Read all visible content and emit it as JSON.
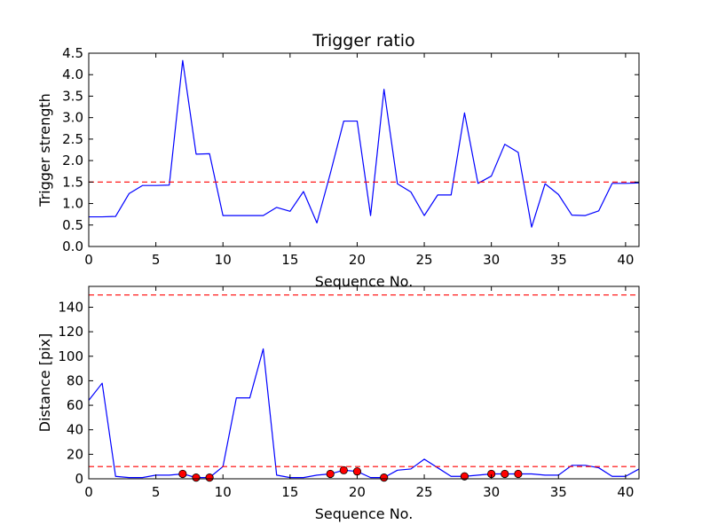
{
  "chart_data": [
    {
      "type": "line",
      "title": "Trigger ratio",
      "xlabel": "Sequence No.",
      "ylabel": "Trigger strength",
      "xlim": [
        0,
        41
      ],
      "ylim": [
        0,
        4.5
      ],
      "xticks": [
        0,
        5,
        10,
        15,
        20,
        25,
        30,
        35,
        40
      ],
      "yticks": [
        0.0,
        0.5,
        1.0,
        1.5,
        2.0,
        2.5,
        3.0,
        3.5,
        4.0,
        4.5
      ],
      "xtick_labels": [
        "0",
        "5",
        "10",
        "15",
        "20",
        "25",
        "30",
        "35",
        "40"
      ],
      "ytick_labels": [
        "0.0",
        "0.5",
        "1.0",
        "1.5",
        "2.0",
        "2.5",
        "3.0",
        "3.5",
        "4.0",
        "4.5"
      ],
      "grid": false,
      "series": [
        {
          "color": "#0000ff",
          "style": "solid",
          "x": [
            0,
            1,
            2,
            3,
            4,
            5,
            6,
            7,
            8,
            9,
            10,
            11,
            12,
            13,
            14,
            15,
            16,
            17,
            18,
            19,
            20,
            21,
            22,
            23,
            24,
            25,
            26,
            27,
            28,
            29,
            30,
            31,
            32,
            33,
            34,
            35,
            36,
            37,
            38,
            39,
            40,
            41
          ],
          "y": [
            0.69,
            0.69,
            0.7,
            1.23,
            1.42,
            1.42,
            1.43,
            4.33,
            2.15,
            2.16,
            0.72,
            0.72,
            0.72,
            0.72,
            0.91,
            0.82,
            1.28,
            0.55,
            1.7,
            2.92,
            2.92,
            0.72,
            3.66,
            1.46,
            1.27,
            0.72,
            1.2,
            1.2,
            3.11,
            1.47,
            1.64,
            2.38,
            2.19,
            0.45,
            1.46,
            1.21,
            0.73,
            0.72,
            0.83,
            1.47,
            1.47,
            1.48
          ]
        }
      ],
      "hlines": [
        {
          "y": 1.5,
          "color": "#ff0000",
          "style": "dashed"
        }
      ]
    },
    {
      "type": "line",
      "title": "",
      "xlabel": "Sequence No.",
      "ylabel": "Distance [pix]",
      "xlim": [
        0,
        41
      ],
      "ylim": [
        0,
        157
      ],
      "xticks": [
        0,
        5,
        10,
        15,
        20,
        25,
        30,
        35,
        40
      ],
      "yticks": [
        0,
        20,
        40,
        60,
        80,
        100,
        120,
        140
      ],
      "xtick_labels": [
        "0",
        "5",
        "10",
        "15",
        "20",
        "25",
        "30",
        "35",
        "40"
      ],
      "ytick_labels": [
        "0",
        "20",
        "40",
        "60",
        "80",
        "100",
        "120",
        "140"
      ],
      "grid": false,
      "series": [
        {
          "color": "#0000ff",
          "style": "solid",
          "x": [
            0,
            1,
            2,
            3,
            4,
            5,
            6,
            7,
            8,
            9,
            10,
            11,
            12,
            13,
            14,
            15,
            16,
            17,
            18,
            19,
            20,
            21,
            22,
            23,
            24,
            25,
            26,
            27,
            28,
            29,
            30,
            31,
            32,
            33,
            34,
            35,
            36,
            37,
            38,
            39,
            40,
            41
          ],
          "y": [
            64,
            78,
            2,
            1,
            1,
            3,
            3,
            4,
            1,
            1,
            10,
            66,
            66,
            106,
            3,
            1,
            1,
            3,
            4,
            7,
            6,
            1,
            1,
            7,
            8,
            16,
            9,
            2,
            2,
            3,
            4,
            4,
            4,
            4,
            3,
            3,
            11,
            11,
            9,
            2,
            2,
            8
          ]
        },
        {
          "color": "#ff0000",
          "style": "markers",
          "x": [
            7,
            8,
            9,
            18,
            19,
            20,
            22,
            28,
            30,
            31,
            32
          ],
          "y": [
            4,
            1,
            1,
            4,
            7,
            6,
            1,
            2,
            4,
            4,
            4
          ]
        }
      ],
      "hlines": [
        {
          "y": 150,
          "color": "#ff0000",
          "style": "dashed"
        },
        {
          "y": 10,
          "color": "#ff0000",
          "style": "dashed"
        }
      ]
    }
  ]
}
